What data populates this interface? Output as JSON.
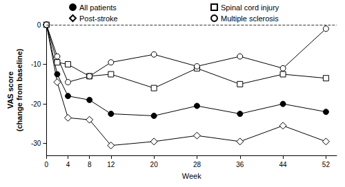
{
  "chart_data": {
    "type": "line",
    "x_label": "Week",
    "y_label": "VAS score\n(change from baseline)",
    "x": [
      0,
      2,
      4,
      8,
      12,
      20,
      28,
      36,
      44,
      52
    ],
    "xlim": [
      0,
      54
    ],
    "xticks": [
      0,
      4,
      8,
      12,
      20,
      28,
      36,
      44,
      52
    ],
    "ylim": [
      -33,
      0
    ],
    "yticks": [
      -30,
      -20,
      -10,
      0
    ],
    "hline": 0,
    "grid": false,
    "legend": "top",
    "series": [
      {
        "name": "All patients",
        "color": "#000000",
        "marker": "circle",
        "values": [
          0,
          -12.5,
          -18,
          -19,
          -22.5,
          -23,
          -20.5,
          -22.5,
          -20,
          -22
        ]
      },
      {
        "name": "Spinal cord injury",
        "color": "#000000",
        "marker": "square_open",
        "values": [
          0,
          -9.5,
          -10,
          -13,
          -12.5,
          -16,
          -11,
          -15,
          -12.5,
          -13.5
        ]
      },
      {
        "name": "Post-stroke",
        "color": "#000000",
        "marker": "diamond_open",
        "values": [
          0,
          -14.5,
          -23.5,
          -24,
          -30.5,
          -29.5,
          -28,
          -29.5,
          -25.5,
          -29.5
        ]
      },
      {
        "name": "Multiple sclerosis",
        "color": "#000000",
        "marker": "circle_open",
        "values": [
          0,
          -8,
          -14.5,
          -13,
          -9.5,
          -7.5,
          -10.5,
          -8,
          -11,
          -1
        ]
      }
    ]
  }
}
